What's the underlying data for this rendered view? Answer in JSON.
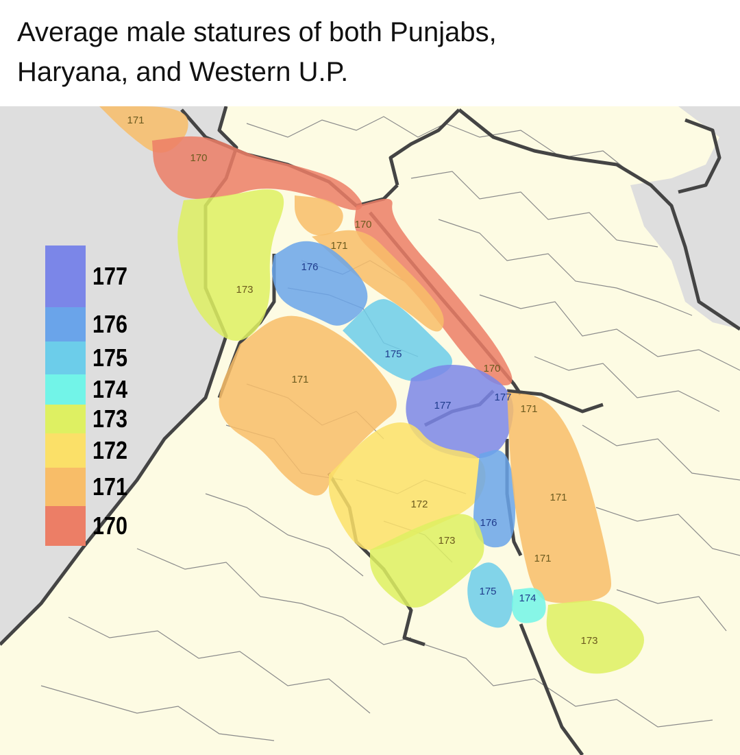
{
  "title": "Average male statures of both Punjabs, Haryana, and Western U.P.",
  "colors": {
    "background_outside": "#dedede",
    "land": "#fdfbe3",
    "border": "#444444",
    "district": "#8a8a8a"
  },
  "legend": [
    {
      "value": "177",
      "color": "#7b86e8"
    },
    {
      "value": "176",
      "color": "#6aa4ea"
    },
    {
      "value": "175",
      "color": "#6ccdea"
    },
    {
      "value": "174",
      "color": "#72f4e8"
    },
    {
      "value": "173",
      "color": "#def062"
    },
    {
      "value": "172",
      "color": "#fbe068"
    },
    {
      "value": "171",
      "color": "#f8bd68"
    },
    {
      "value": "170",
      "color": "#ec7e66"
    }
  ],
  "regions": [
    {
      "value": "171"
    },
    {
      "value": "170"
    },
    {
      "value": "170"
    },
    {
      "value": "173"
    },
    {
      "value": "171"
    },
    {
      "value": "171"
    },
    {
      "value": "176"
    },
    {
      "value": "175"
    },
    {
      "value": "177"
    },
    {
      "value": "177"
    },
    {
      "value": "171"
    },
    {
      "value": "172"
    },
    {
      "value": "176"
    },
    {
      "value": "171"
    },
    {
      "value": "171"
    },
    {
      "value": "171"
    },
    {
      "value": "173"
    },
    {
      "value": "175"
    },
    {
      "value": "174"
    },
    {
      "value": "173"
    },
    {
      "value": "170"
    }
  ]
}
